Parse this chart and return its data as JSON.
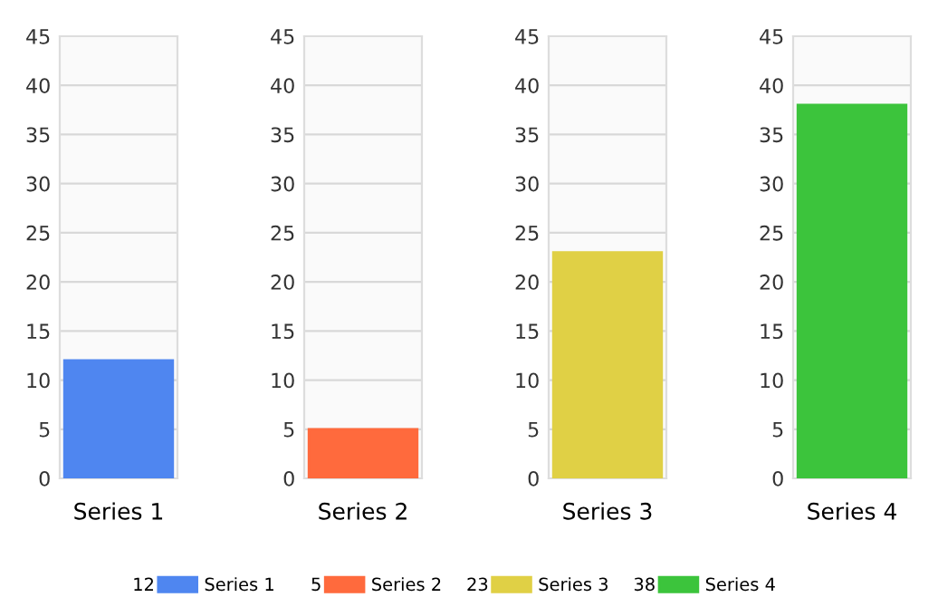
{
  "chart_data": [
    {
      "type": "bar",
      "categories": [
        null
      ],
      "xlabel": "Series 1",
      "series": [
        {
          "name": "Series 1",
          "color": "#4f86f0",
          "values": [
            12
          ]
        }
      ],
      "annotations": [
        "12"
      ],
      "ylim": [
        0,
        45
      ],
      "yticks": [
        0,
        5,
        10,
        15,
        20,
        25,
        30,
        35,
        40,
        45
      ],
      "grid": "y",
      "legend": "bottom"
    },
    {
      "type": "bar",
      "categories": [
        null
      ],
      "xlabel": "Series 2",
      "series": [
        {
          "name": "Series 2",
          "color": "#ff6a3d",
          "values": [
            5
          ]
        }
      ],
      "annotations": [
        "5"
      ],
      "ylim": [
        0,
        45
      ],
      "yticks": [
        0,
        5,
        10,
        15,
        20,
        25,
        30,
        35,
        40,
        45
      ],
      "grid": "y",
      "legend": "bottom"
    },
    {
      "type": "bar",
      "categories": [
        null
      ],
      "xlabel": "Series 3",
      "series": [
        {
          "name": "Series 3",
          "color": "#e0d045",
          "values": [
            23
          ]
        }
      ],
      "annotations": [
        "23"
      ],
      "ylim": [
        0,
        45
      ],
      "yticks": [
        0,
        5,
        10,
        15,
        20,
        25,
        30,
        35,
        40,
        45
      ],
      "grid": "y",
      "legend": "bottom"
    },
    {
      "type": "bar",
      "categories": [
        null
      ],
      "xlabel": "Series 4",
      "series": [
        {
          "name": "Series 4",
          "color": "#3cc43c",
          "values": [
            38
          ]
        }
      ],
      "annotations": [
        "38"
      ],
      "ylim": [
        0,
        45
      ],
      "yticks": [
        0,
        5,
        10,
        15,
        20,
        25,
        30,
        35,
        40,
        45
      ],
      "grid": "y",
      "legend": "bottom"
    }
  ]
}
